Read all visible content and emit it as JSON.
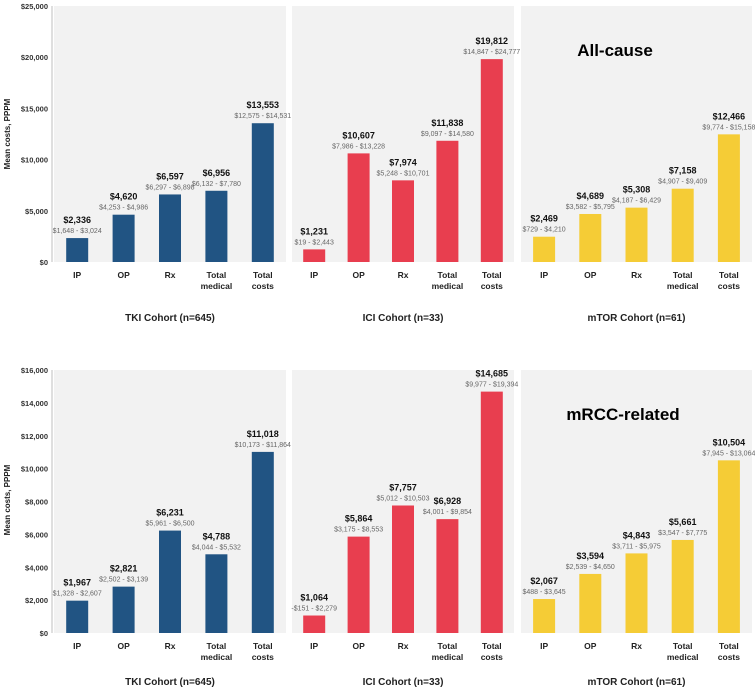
{
  "colors": {
    "tki": "#215483",
    "ici": "#e83e4f",
    "mtor": "#f5cc36",
    "panel_bg": "#f2f2f2",
    "axis": "#bfbfbf"
  },
  "chart_data": [
    {
      "type": "bar",
      "title": "All-cause",
      "ylabel": "Mean costs, PPPM",
      "ylim": [
        0,
        25000
      ],
      "yticks": [
        "$0",
        "$5,000",
        "$10,000",
        "$15,000",
        "$20,000",
        "$25,000"
      ],
      "ytick_values": [
        0,
        5000,
        10000,
        15000,
        20000,
        25000
      ],
      "groups": [
        {
          "name": "TKI Cohort (n=645)",
          "color_key": "tki",
          "categories": [
            "IP",
            "OP",
            "Rx",
            "Total\nmedical",
            "Total\ncosts"
          ],
          "values": [
            2336,
            4620,
            6597,
            6956,
            13553
          ],
          "value_labels": [
            "$2,336",
            "$4,620",
            "$6,597",
            "$6,956",
            "$13,553"
          ],
          "ci_labels": [
            "$1,648 - $3,024",
            "$4,253 - $4,986",
            "$6,297 - $6,898",
            "$6,132 - $7,780",
            "$12,575 - $14,531"
          ]
        },
        {
          "name": "ICI Cohort (n=33)",
          "color_key": "ici",
          "categories": [
            "IP",
            "OP",
            "Rx",
            "Total\nmedical",
            "Total\ncosts"
          ],
          "values": [
            1231,
            10607,
            7974,
            11838,
            19812
          ],
          "value_labels": [
            "$1,231",
            "$10,607",
            "$7,974",
            "$11,838",
            "$19,812"
          ],
          "ci_labels": [
            "$19 - $2,443",
            "$7,986 - $13,228",
            "$5,248 - $10,701",
            "$9,097 - $14,580",
            "$14,847 - $24,777"
          ]
        },
        {
          "name": "mTOR Cohort (n=61)",
          "color_key": "mtor",
          "categories": [
            "IP",
            "OP",
            "Rx",
            "Total\nmedical",
            "Total\ncosts"
          ],
          "values": [
            2469,
            4689,
            5308,
            7158,
            12466
          ],
          "value_labels": [
            "$2,469",
            "$4,689",
            "$5,308",
            "$7,158",
            "$12,466"
          ],
          "ci_labels": [
            "$729 - $4,210",
            "$3,582 - $5,795",
            "$4,187 - $6,429",
            "$4,907 - $9,409",
            "$9,774 - $15,158"
          ]
        }
      ]
    },
    {
      "type": "bar",
      "title": "mRCC-related",
      "ylabel": "Mean costs, PPPM",
      "ylim": [
        0,
        16000
      ],
      "yticks": [
        "$0",
        "$2,000",
        "$4,000",
        "$6,000",
        "$8,000",
        "$10,000",
        "$12,000",
        "$14,000",
        "$16,000"
      ],
      "ytick_values": [
        0,
        2000,
        4000,
        6000,
        8000,
        10000,
        12000,
        14000,
        16000
      ],
      "groups": [
        {
          "name": "TKI Cohort (n=645)",
          "color_key": "tki",
          "categories": [
            "IP",
            "OP",
            "Rx",
            "Total\nmedical",
            "Total\ncosts"
          ],
          "values": [
            1967,
            2821,
            6231,
            4788,
            11018
          ],
          "value_labels": [
            "$1,967",
            "$2,821",
            "$6,231",
            "$4,788",
            "$11,018"
          ],
          "ci_labels": [
            "$1,328 - $2,607",
            "$2,502 - $3,139",
            "$5,961 - $6,500",
            "$4,044 - $5,532",
            "$10,173 - $11,864"
          ]
        },
        {
          "name": "ICI Cohort (n=33)",
          "color_key": "ici",
          "categories": [
            "IP",
            "OP",
            "Rx",
            "Total\nmedical",
            "Total\ncosts"
          ],
          "values": [
            1064,
            5864,
            7757,
            6928,
            14685
          ],
          "value_labels": [
            "$1,064",
            "$5,864",
            "$7,757",
            "$6,928",
            "$14,685"
          ],
          "ci_labels": [
            "-$151 - $2,279",
            "$3,175 - $8,553",
            "$5,012 - $10,503",
            "$4,001 - $9,854",
            "$9,977 - $19,394"
          ]
        },
        {
          "name": "mTOR Cohort (n=61)",
          "color_key": "mtor",
          "categories": [
            "IP",
            "OP",
            "Rx",
            "Total\nmedical",
            "Total\ncosts"
          ],
          "values": [
            2067,
            3594,
            4843,
            5661,
            10504
          ],
          "value_labels": [
            "$2,067",
            "$3,594",
            "$4,843",
            "$5,661",
            "$10,504"
          ],
          "ci_labels": [
            "$488 - $3,645",
            "$2,539 - $4,650",
            "$3,711 - $5,975",
            "$3,547 - $7,775",
            "$7,945 - $13,064"
          ]
        }
      ]
    }
  ]
}
